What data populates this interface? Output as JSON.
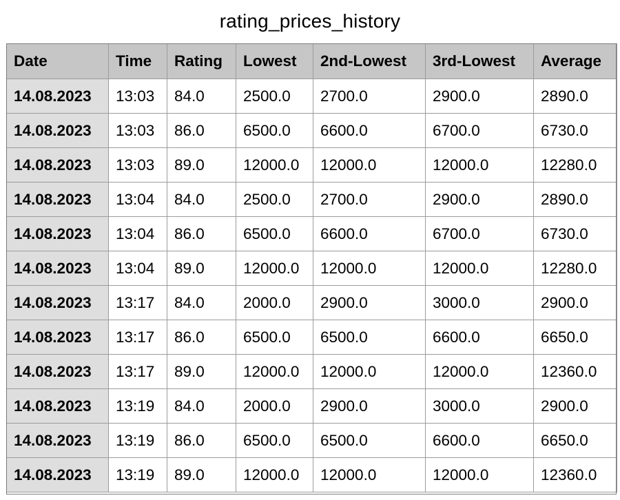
{
  "title": "rating_prices_history",
  "table": {
    "headers": [
      "Date",
      "Time",
      "Rating",
      "Lowest",
      "2nd-Lowest",
      "3rd-Lowest",
      "Average"
    ],
    "rows": [
      [
        "14.08.2023",
        "13:03",
        "84.0",
        "2500.0",
        "2700.0",
        "2900.0",
        "2890.0"
      ],
      [
        "14.08.2023",
        "13:03",
        "86.0",
        "6500.0",
        "6600.0",
        "6700.0",
        "6730.0"
      ],
      [
        "14.08.2023",
        "13:03",
        "89.0",
        "12000.0",
        "12000.0",
        "12000.0",
        "12280.0"
      ],
      [
        "14.08.2023",
        "13:04",
        "84.0",
        "2500.0",
        "2700.0",
        "2900.0",
        "2890.0"
      ],
      [
        "14.08.2023",
        "13:04",
        "86.0",
        "6500.0",
        "6600.0",
        "6700.0",
        "6730.0"
      ],
      [
        "14.08.2023",
        "13:04",
        "89.0",
        "12000.0",
        "12000.0",
        "12000.0",
        "12280.0"
      ],
      [
        "14.08.2023",
        "13:17",
        "84.0",
        "2000.0",
        "2900.0",
        "3000.0",
        "2900.0"
      ],
      [
        "14.08.2023",
        "13:17",
        "86.0",
        "6500.0",
        "6500.0",
        "6600.0",
        "6650.0"
      ],
      [
        "14.08.2023",
        "13:17",
        "89.0",
        "12000.0",
        "12000.0",
        "12000.0",
        "12360.0"
      ],
      [
        "14.08.2023",
        "13:19",
        "84.0",
        "2000.0",
        "2900.0",
        "3000.0",
        "2900.0"
      ],
      [
        "14.08.2023",
        "13:19",
        "86.0",
        "6500.0",
        "6500.0",
        "6600.0",
        "6650.0"
      ],
      [
        "14.08.2023",
        "13:19",
        "89.0",
        "12000.0",
        "12000.0",
        "12000.0",
        "12360.0"
      ]
    ]
  }
}
